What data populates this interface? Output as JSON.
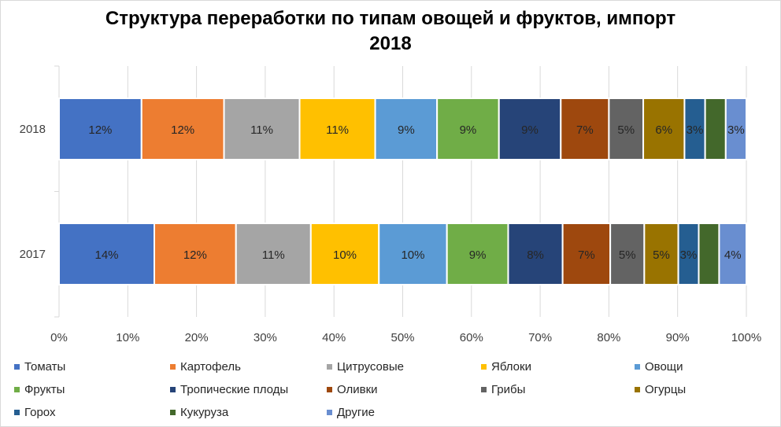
{
  "chart_data": {
    "type": "bar",
    "orientation": "horizontal",
    "stacked": "percent",
    "title_lines": [
      "Структура переработки по типам овощей и фруктов, импорт",
      "2018"
    ],
    "categories": [
      "2018",
      "2017"
    ],
    "series": [
      {
        "name": "Томаты",
        "color": "#4472C4",
        "values": [
          12,
          14
        ],
        "labels": [
          "12%",
          "14%"
        ]
      },
      {
        "name": "Картофель",
        "color": "#ED7D31",
        "values": [
          12,
          12
        ],
        "labels": [
          "12%",
          "12%"
        ]
      },
      {
        "name": "Цитрусовые",
        "color": "#A5A5A5",
        "values": [
          11,
          11
        ],
        "labels": [
          "11%",
          "11%"
        ]
      },
      {
        "name": "Яблоки",
        "color": "#FFC000",
        "values": [
          11,
          10
        ],
        "labels": [
          "11%",
          "10%"
        ]
      },
      {
        "name": "Овощи",
        "color": "#5B9BD5",
        "values": [
          9,
          10
        ],
        "labels": [
          "9%",
          "10%"
        ]
      },
      {
        "name": "Фрукты",
        "color": "#70AD47",
        "values": [
          9,
          9
        ],
        "labels": [
          "9%",
          "9%"
        ]
      },
      {
        "name": "Тропические плоды",
        "color": "#264478",
        "values": [
          9,
          8
        ],
        "labels": [
          "9%",
          "8%"
        ]
      },
      {
        "name": "Оливки",
        "color": "#9E480E",
        "values": [
          7,
          7
        ],
        "labels": [
          "7%",
          "7%"
        ]
      },
      {
        "name": "Грибы",
        "color": "#636363",
        "values": [
          5,
          5
        ],
        "labels": [
          "5%",
          "5%"
        ]
      },
      {
        "name": "Огурцы",
        "color": "#997300",
        "values": [
          6,
          5
        ],
        "labels": [
          "6%",
          "5%"
        ]
      },
      {
        "name": "Горох",
        "color": "#255E91",
        "values": [
          3,
          3
        ],
        "labels": [
          "3%",
          "3%"
        ]
      },
      {
        "name": "Кукуруза",
        "color": "#43682B",
        "values": [
          3,
          3
        ],
        "labels": [
          "",
          ""
        ]
      },
      {
        "name": "Другие",
        "color": "#698ED0",
        "values": [
          3,
          4
        ],
        "labels": [
          "3%",
          "4%"
        ]
      }
    ],
    "x_ticks": [
      "0%",
      "10%",
      "20%",
      "30%",
      "40%",
      "50%",
      "60%",
      "70%",
      "80%",
      "90%",
      "100%"
    ],
    "xlim": [
      0,
      100
    ],
    "grid": true,
    "legend_position": "bottom"
  }
}
